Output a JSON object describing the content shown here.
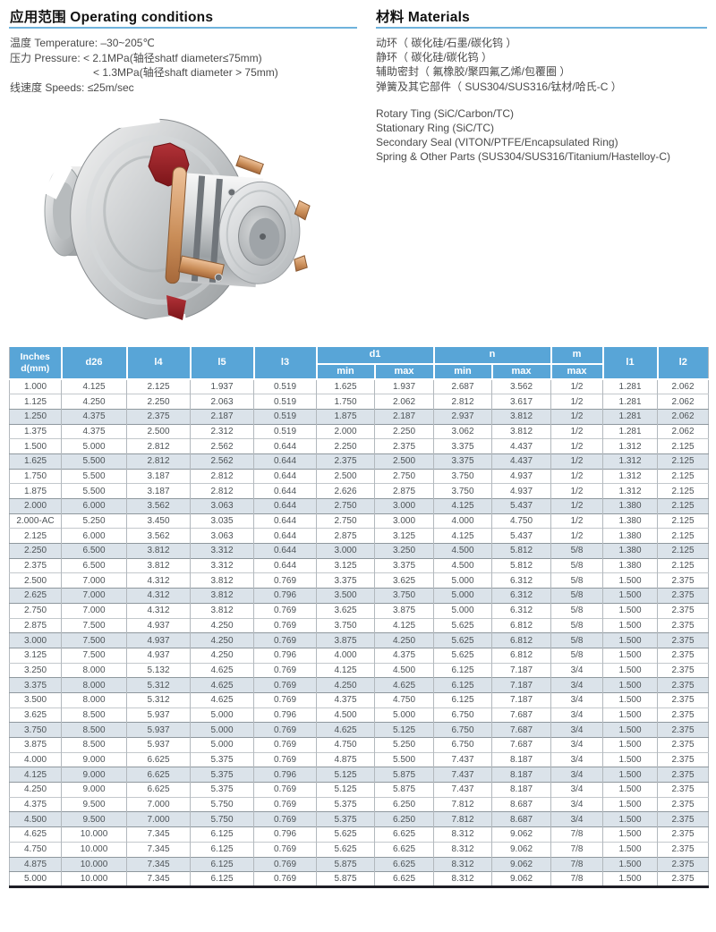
{
  "operating": {
    "title": "应用范围 Operating conditions",
    "lines": [
      "温度 Temperature: –30~205℃",
      "压力 Pressure:  < 2.1MPa(轴径shatf diameter≤75mm)",
      "< 1.3MPa(轴径shaft diameter > 75mm)",
      "线速度 Speeds: ≤25m/sec"
    ]
  },
  "materials": {
    "title": "材料 Materials",
    "lines_zh": [
      "动环（ 碳化硅/石墨/碳化钨 ）",
      "静环（ 碳化硅/碳化钨 ）",
      "辅助密封（ 氟橡胶/聚四氟乙烯/包覆圈 ）",
      "弹簧及其它部件（ SUS304/SUS316/钛材/哈氏-C ）"
    ],
    "lines_en": [
      "Rotary Ting (SiC/Carbon/TC)",
      "Stationary Ring (SiC/TC)",
      "Secondary Seal (VITON/PTFE/Encapsulated Ring)",
      "Spring & Other Parts (SUS304/SUS316/Titanium/Hastelloy-C)"
    ]
  },
  "product_image": "mechanical-seal-cartridge-render",
  "colors": {
    "header_blue": "#58a5d7",
    "shaded_row": "#dbe3ea",
    "rule_blue": "#6fb3dc",
    "seal_red": "#a8262c",
    "seal_copper": "#c08a5e"
  },
  "table": {
    "header": {
      "col1_line1": "Inches",
      "col1_line2": "d(mm)",
      "d26": "d26",
      "l4": "l4",
      "l5": "l5",
      "l3": "l3",
      "d1": "d1",
      "n": "n",
      "m": "m",
      "min_label": "min",
      "max_label": "max",
      "l1": "l1",
      "l2": "l2"
    },
    "col_keys": [
      "inches",
      "d26",
      "l4",
      "l5",
      "l3",
      "d1-min",
      "d1-max",
      "n-min",
      "n-max",
      "m-max",
      "l1",
      "l2"
    ],
    "shaded_every": 3,
    "rows": [
      [
        "1.000",
        "4.125",
        "2.125",
        "1.937",
        "0.519",
        "1.625",
        "1.937",
        "2.687",
        "3.562",
        "1/2",
        "1.281",
        "2.062"
      ],
      [
        "1.125",
        "4.250",
        "2.250",
        "2.063",
        "0.519",
        "1.750",
        "2.062",
        "2.812",
        "3.617",
        "1/2",
        "1.281",
        "2.062"
      ],
      [
        "1.250",
        "4.375",
        "2.375",
        "2.187",
        "0.519",
        "1.875",
        "2.187",
        "2.937",
        "3.812",
        "1/2",
        "1.281",
        "2.062"
      ],
      [
        "1.375",
        "4.375",
        "2.500",
        "2.312",
        "0.519",
        "2.000",
        "2.250",
        "3.062",
        "3.812",
        "1/2",
        "1.281",
        "2.062"
      ],
      [
        "1.500",
        "5.000",
        "2.812",
        "2.562",
        "0.644",
        "2.250",
        "2.375",
        "3.375",
        "4.437",
        "1/2",
        "1.312",
        "2.125"
      ],
      [
        "1.625",
        "5.500",
        "2.812",
        "2.562",
        "0.644",
        "2.375",
        "2.500",
        "3.375",
        "4.437",
        "1/2",
        "1.312",
        "2.125"
      ],
      [
        "1.750",
        "5.500",
        "3.187",
        "2.812",
        "0.644",
        "2.500",
        "2.750",
        "3.750",
        "4.937",
        "1/2",
        "1.312",
        "2.125"
      ],
      [
        "1.875",
        "5.500",
        "3.187",
        "2.812",
        "0.644",
        "2.626",
        "2.875",
        "3.750",
        "4.937",
        "1/2",
        "1.312",
        "2.125"
      ],
      [
        "2.000",
        "6.000",
        "3.562",
        "3.063",
        "0.644",
        "2.750",
        "3.000",
        "4.125",
        "5.437",
        "1/2",
        "1.380",
        "2.125"
      ],
      [
        "2.000-AC",
        "5.250",
        "3.450",
        "3.035",
        "0.644",
        "2.750",
        "3.000",
        "4.000",
        "4.750",
        "1/2",
        "1.380",
        "2.125"
      ],
      [
        "2.125",
        "6.000",
        "3.562",
        "3.063",
        "0.644",
        "2.875",
        "3.125",
        "4.125",
        "5.437",
        "1/2",
        "1.380",
        "2.125"
      ],
      [
        "2.250",
        "6.500",
        "3.812",
        "3.312",
        "0.644",
        "3.000",
        "3.250",
        "4.500",
        "5.812",
        "5/8",
        "1.380",
        "2.125"
      ],
      [
        "2.375",
        "6.500",
        "3.812",
        "3.312",
        "0.644",
        "3.125",
        "3.375",
        "4.500",
        "5.812",
        "5/8",
        "1.380",
        "2.125"
      ],
      [
        "2.500",
        "7.000",
        "4.312",
        "3.812",
        "0.769",
        "3.375",
        "3.625",
        "5.000",
        "6.312",
        "5/8",
        "1.500",
        "2.375"
      ],
      [
        "2.625",
        "7.000",
        "4.312",
        "3.812",
        "0.796",
        "3.500",
        "3.750",
        "5.000",
        "6.312",
        "5/8",
        "1.500",
        "2.375"
      ],
      [
        "2.750",
        "7.000",
        "4.312",
        "3.812",
        "0.769",
        "3.625",
        "3.875",
        "5.000",
        "6.312",
        "5/8",
        "1.500",
        "2.375"
      ],
      [
        "2.875",
        "7.500",
        "4.937",
        "4.250",
        "0.769",
        "3.750",
        "4.125",
        "5.625",
        "6.812",
        "5/8",
        "1.500",
        "2.375"
      ],
      [
        "3.000",
        "7.500",
        "4.937",
        "4.250",
        "0.769",
        "3.875",
        "4.250",
        "5.625",
        "6.812",
        "5/8",
        "1.500",
        "2.375"
      ],
      [
        "3.125",
        "7.500",
        "4.937",
        "4.250",
        "0.796",
        "4.000",
        "4.375",
        "5.625",
        "6.812",
        "5/8",
        "1.500",
        "2.375"
      ],
      [
        "3.250",
        "8.000",
        "5.132",
        "4.625",
        "0.769",
        "4.125",
        "4.500",
        "6.125",
        "7.187",
        "3/4",
        "1.500",
        "2.375"
      ],
      [
        "3.375",
        "8.000",
        "5.312",
        "4.625",
        "0.769",
        "4.250",
        "4.625",
        "6.125",
        "7.187",
        "3/4",
        "1.500",
        "2.375"
      ],
      [
        "3.500",
        "8.000",
        "5.312",
        "4.625",
        "0.769",
        "4.375",
        "4.750",
        "6.125",
        "7.187",
        "3/4",
        "1.500",
        "2.375"
      ],
      [
        "3.625",
        "8.500",
        "5.937",
        "5.000",
        "0.796",
        "4.500",
        "5.000",
        "6.750",
        "7.687",
        "3/4",
        "1.500",
        "2.375"
      ],
      [
        "3.750",
        "8.500",
        "5.937",
        "5.000",
        "0.769",
        "4.625",
        "5.125",
        "6.750",
        "7.687",
        "3/4",
        "1.500",
        "2.375"
      ],
      [
        "3.875",
        "8.500",
        "5.937",
        "5.000",
        "0.769",
        "4.750",
        "5.250",
        "6.750",
        "7.687",
        "3/4",
        "1.500",
        "2.375"
      ],
      [
        "4.000",
        "9.000",
        "6.625",
        "5.375",
        "0.769",
        "4.875",
        "5.500",
        "7.437",
        "8.187",
        "3/4",
        "1.500",
        "2.375"
      ],
      [
        "4.125",
        "9.000",
        "6.625",
        "5.375",
        "0.796",
        "5.125",
        "5.875",
        "7.437",
        "8.187",
        "3/4",
        "1.500",
        "2.375"
      ],
      [
        "4.250",
        "9.000",
        "6.625",
        "5.375",
        "0.769",
        "5.125",
        "5.875",
        "7.437",
        "8.187",
        "3/4",
        "1.500",
        "2.375"
      ],
      [
        "4.375",
        "9.500",
        "7.000",
        "5.750",
        "0.769",
        "5.375",
        "6.250",
        "7.812",
        "8.687",
        "3/4",
        "1.500",
        "2.375"
      ],
      [
        "4.500",
        "9.500",
        "7.000",
        "5.750",
        "0.769",
        "5.375",
        "6.250",
        "7.812",
        "8.687",
        "3/4",
        "1.500",
        "2.375"
      ],
      [
        "4.625",
        "10.000",
        "7.345",
        "6.125",
        "0.796",
        "5.625",
        "6.625",
        "8.312",
        "9.062",
        "7/8",
        "1.500",
        "2.375"
      ],
      [
        "4.750",
        "10.000",
        "7.345",
        "6.125",
        "0.769",
        "5.625",
        "6.625",
        "8.312",
        "9.062",
        "7/8",
        "1.500",
        "2.375"
      ],
      [
        "4.875",
        "10.000",
        "7.345",
        "6.125",
        "0.769",
        "5.875",
        "6.625",
        "8.312",
        "9.062",
        "7/8",
        "1.500",
        "2.375"
      ],
      [
        "5.000",
        "10.000",
        "7.345",
        "6.125",
        "0.769",
        "5.875",
        "6.625",
        "8.312",
        "9.062",
        "7/8",
        "1.500",
        "2.375"
      ]
    ]
  }
}
